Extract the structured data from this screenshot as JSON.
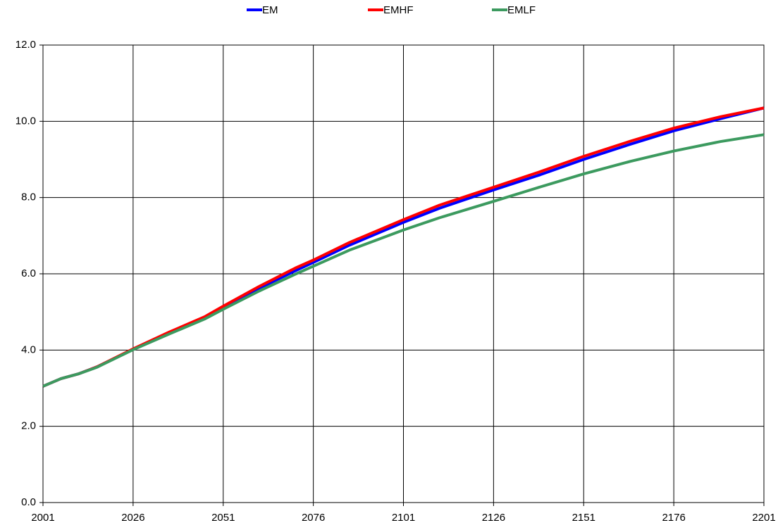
{
  "chart_data": {
    "type": "line",
    "x": [
      2001,
      2006,
      2011,
      2016,
      2026,
      2036,
      2046,
      2051,
      2061,
      2071,
      2076,
      2086,
      2101,
      2111,
      2126,
      2139,
      2151,
      2164,
      2176,
      2189,
      2201
    ],
    "series": [
      {
        "name": "EM",
        "color": "#0000ff",
        "values": [
          3.05,
          3.25,
          3.38,
          3.56,
          4.02,
          4.45,
          4.86,
          5.12,
          5.62,
          6.08,
          6.3,
          6.75,
          7.35,
          7.72,
          8.2,
          8.6,
          9.0,
          9.4,
          9.75,
          10.07,
          10.35
        ]
      },
      {
        "name": "EMHF",
        "color": "#ff0000",
        "values": [
          3.05,
          3.25,
          3.38,
          3.56,
          4.03,
          4.47,
          4.88,
          5.15,
          5.67,
          6.15,
          6.36,
          6.82,
          7.42,
          7.8,
          8.27,
          8.68,
          9.08,
          9.48,
          9.82,
          10.12,
          10.35
        ]
      },
      {
        "name": "EMLF",
        "color": "#3c9a5f",
        "values": [
          3.05,
          3.25,
          3.38,
          3.55,
          4.01,
          4.42,
          4.82,
          5.07,
          5.55,
          5.99,
          6.2,
          6.62,
          7.15,
          7.47,
          7.9,
          8.28,
          8.62,
          8.95,
          9.22,
          9.47,
          9.65
        ]
      }
    ],
    "xlim": [
      2001,
      2201
    ],
    "xticks": [
      2001,
      2026,
      2051,
      2076,
      2101,
      2126,
      2151,
      2176,
      2201
    ],
    "ylim": [
      0,
      12
    ],
    "yticks": [
      {
        "value": 0,
        "label": "0.0"
      },
      {
        "value": 2,
        "label": "2.0"
      },
      {
        "value": 4,
        "label": "4.0"
      },
      {
        "value": 6,
        "label": "6.0"
      },
      {
        "value": 8,
        "label": "8.0"
      },
      {
        "value": 10,
        "label": "10.0"
      },
      {
        "value": 12,
        "label": "12.0"
      }
    ],
    "grid": true,
    "legend": "top"
  }
}
